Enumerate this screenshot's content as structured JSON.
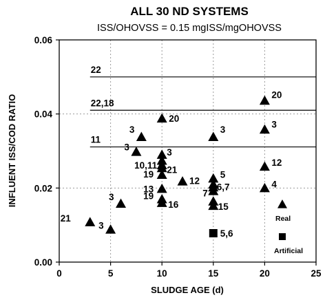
{
  "chart_data": {
    "type": "scatter",
    "title": "ALL 30 ND SYSTEMS",
    "subtitle": "ISS/OHOVSS = 0.15 mgISS/mgOHOVSS",
    "xlabel": "SLUDGE AGE (d)",
    "ylabel": "INFLUENT ISS/COD RATIO",
    "xlim": [
      0,
      25
    ],
    "ylim": [
      0,
      0.06
    ],
    "x_ticks": [
      "0",
      "5",
      "10",
      "15",
      "20",
      "25"
    ],
    "y_ticks": [
      "0.00",
      "0.02",
      "0.04",
      "0.06"
    ],
    "grid": "dotted",
    "reference_lines": [
      {
        "label": "22",
        "y": 0.05,
        "x_start": 3
      },
      {
        "label": "22,18",
        "y": 0.041,
        "x_start": 3
      },
      {
        "label": "11",
        "y": 0.0311,
        "x_start": 3
      }
    ],
    "series": [
      {
        "name": "Real",
        "marker": "triangle",
        "points": [
          {
            "x": 3,
            "y": 0.0108,
            "label": "21"
          },
          {
            "x": 5,
            "y": 0.0088,
            "label": "3"
          },
          {
            "x": 6,
            "y": 0.0158,
            "label": "3"
          },
          {
            "x": 7.5,
            "y": 0.0298,
            "label": "3"
          },
          {
            "x": 8,
            "y": 0.0338,
            "label": "3"
          },
          {
            "x": 10,
            "y": 0.0388,
            "label": "20"
          },
          {
            "x": 10,
            "y": 0.029,
            "label": "3"
          },
          {
            "x": 10,
            "y": 0.0274,
            "label": ""
          },
          {
            "x": 10,
            "y": 0.0262,
            "label": "10,11"
          },
          {
            "x": 10,
            "y": 0.0254,
            "label": "21"
          },
          {
            "x": 10,
            "y": 0.0236,
            "label": "19"
          },
          {
            "x": 10,
            "y": 0.0198,
            "label": "13"
          },
          {
            "x": 10,
            "y": 0.017,
            "label": "19"
          },
          {
            "x": 10,
            "y": 0.016,
            "label": "16"
          },
          {
            "x": 12,
            "y": 0.0218,
            "label": "12"
          },
          {
            "x": 15,
            "y": 0.0338,
            "label": "3"
          },
          {
            "x": 15,
            "y": 0.0226,
            "label": "5"
          },
          {
            "x": 15,
            "y": 0.021,
            "label": ""
          },
          {
            "x": 15,
            "y": 0.0202,
            "label": "6,7"
          },
          {
            "x": 15,
            "y": 0.0192,
            "label": "7"
          },
          {
            "x": 15,
            "y": 0.0164,
            "label": ""
          },
          {
            "x": 15,
            "y": 0.0152,
            "label": "15"
          },
          {
            "x": 20,
            "y": 0.0436,
            "label": "20"
          },
          {
            "x": 20,
            "y": 0.0358,
            "label": "3"
          },
          {
            "x": 20,
            "y": 0.0258,
            "label": "12"
          },
          {
            "x": 20,
            "y": 0.02,
            "label": "4"
          }
        ]
      },
      {
        "name": "Artificial",
        "marker": "square",
        "points": [
          {
            "x": 15,
            "y": 0.0078,
            "label": "5,6"
          }
        ]
      }
    ],
    "legend_placement": "bottom-right"
  }
}
